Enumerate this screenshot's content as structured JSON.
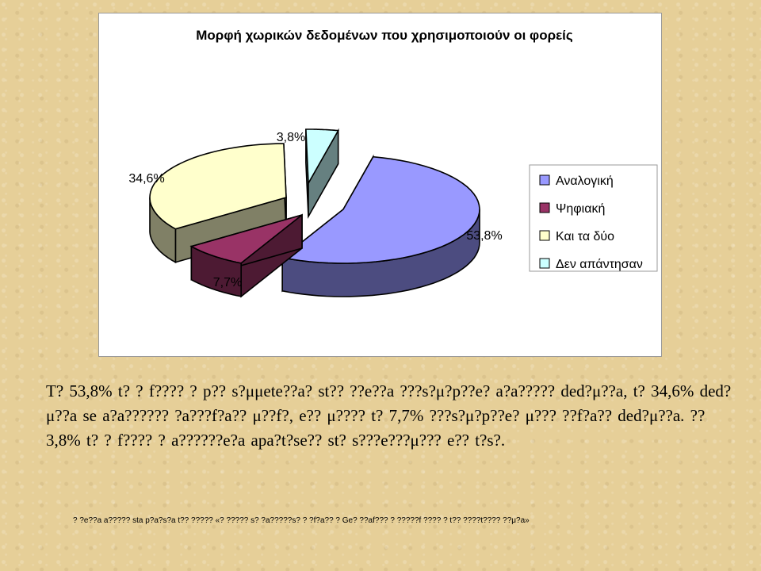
{
  "chart_data": {
    "type": "pie",
    "title": "Μορφή χωρικών δεδομένων που χρησιμοποιούν οι φορείς",
    "categories": [
      "Αναλογική",
      "Ψηφιακή",
      "Και τα δύο",
      "Δεν απάντησαν"
    ],
    "values": [
      53.8,
      7.7,
      34.6,
      3.8
    ],
    "value_labels": [
      "53,8%",
      "7,7%",
      "34,6%",
      "3,8%"
    ],
    "exploded": true,
    "three_d": true,
    "legend_position": "right",
    "colors": {
      "top": [
        "#9999ff",
        "#993366",
        "#ffffcc",
        "#ccffff"
      ],
      "side": [
        "#4c4c80",
        "#4d1a33",
        "#808066",
        "#668080"
      ]
    }
  },
  "body_text": "Τ? 53,8% t? ? f???? ? p?? s?μμete??a? st?? ??e??a ???s?μ?p??e? a?a????? ded?μ??a, t? 34,6% ded?μ??a se a?a?????? ?a???f?a?? μ??f?, e?? μ???? t? 7,7% ???s?μ?p??e? μ??? ??f?a?? ded?μ??a. ?? 3,8% t? ? f???? ? a??????e?a apa?t?se?? st? s???e???μ??? e?? t?s?.",
  "footnote": "? ?e??a a????? sta p?a?s?a t?? ????? «? ????? s? ?a?????s? ? ?f?a?? ? Ge? ??af??? ? ?????f ???? ? t?? ????t???? ??μ?a»"
}
